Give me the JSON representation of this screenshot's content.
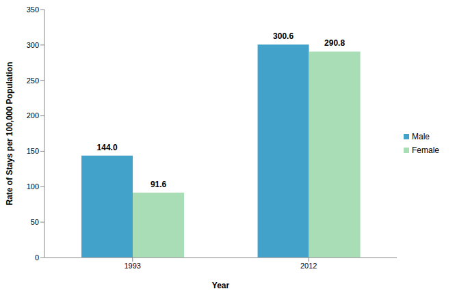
{
  "chart_data": {
    "type": "bar",
    "x_label": "Year",
    "y_label": "Rate of Stays per 100,000 Population",
    "categories": [
      "1993",
      "2012"
    ],
    "series": [
      {
        "name": "Male",
        "color": "#43a2ca",
        "values": [
          144.0,
          300.6
        ],
        "value_labels": [
          "144.0",
          "300.6"
        ]
      },
      {
        "name": "Female",
        "color": "#a8ddb5",
        "values": [
          91.6,
          290.8
        ],
        "value_labels": [
          "91.6",
          "290.8"
        ]
      }
    ],
    "ylim": [
      0,
      350
    ],
    "yticks": [
      0,
      50,
      100,
      150,
      200,
      250,
      300,
      350
    ],
    "data_labels": true,
    "legend": "right",
    "grid": false
  }
}
